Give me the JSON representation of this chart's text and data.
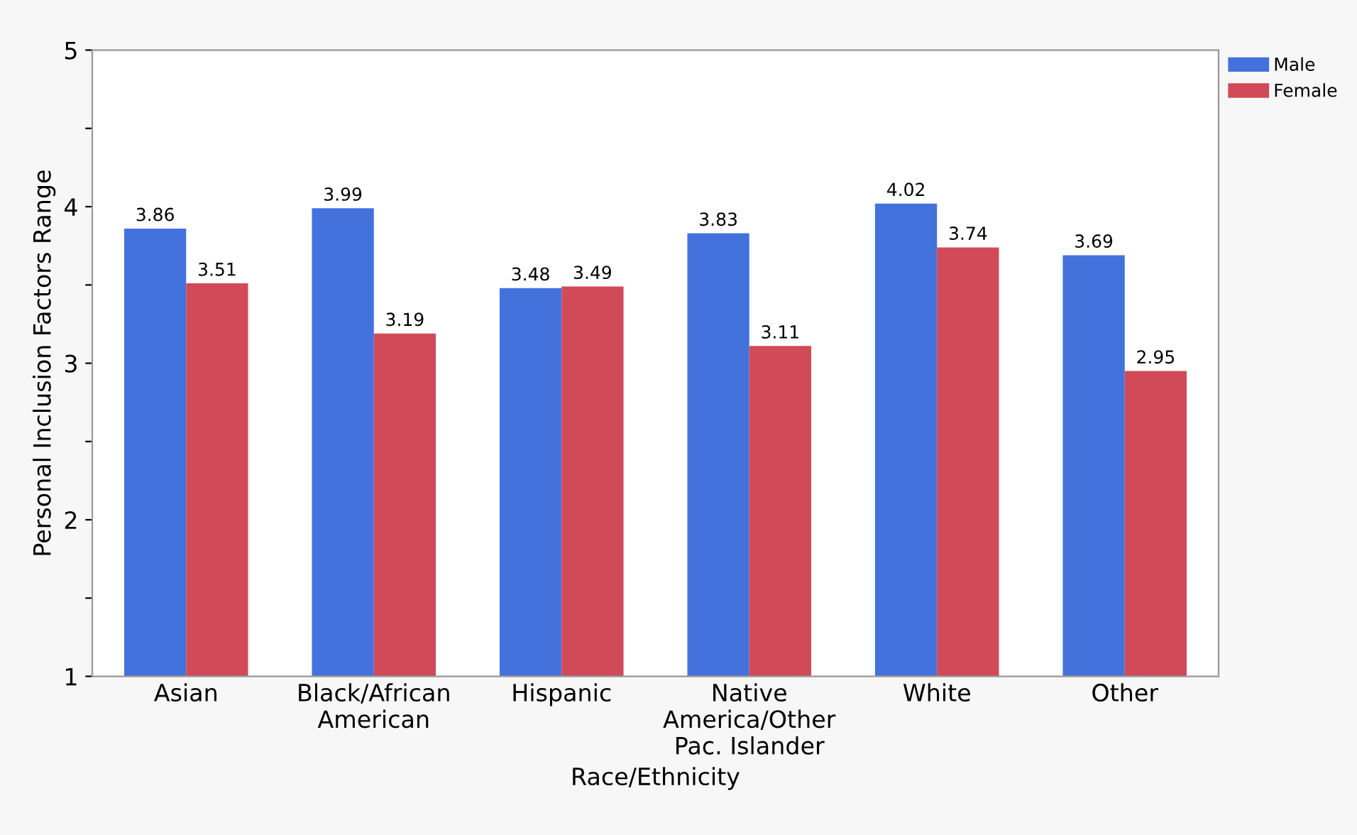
{
  "chart_data": {
    "type": "bar",
    "xlabel": "Race/Ethnicity",
    "ylabel": "Personal Inclusion Factors Range",
    "categories": [
      "Asian",
      "Black/African\nAmerican",
      "Hispanic",
      "Native\nAmerica/Other\nPac. Islander",
      "White",
      "Other"
    ],
    "series": [
      {
        "name": "Male",
        "color": "#4472dc",
        "values": [
          3.86,
          3.99,
          3.48,
          3.83,
          4.02,
          3.69
        ]
      },
      {
        "name": "Female",
        "color": "#d14a57",
        "values": [
          3.51,
          3.19,
          3.49,
          3.11,
          3.74,
          2.95
        ]
      }
    ],
    "ylim": [
      1,
      5
    ],
    "yticks": [
      1,
      {
        "value": 1.5,
        "label": null
      },
      2,
      {
        "value": 2.5,
        "label": null
      },
      3,
      {
        "value": 3.5,
        "label": null
      },
      4,
      {
        "value": 4.5,
        "label": null
      },
      5
    ],
    "data_labels": true,
    "grid": false,
    "legend": "top right"
  }
}
